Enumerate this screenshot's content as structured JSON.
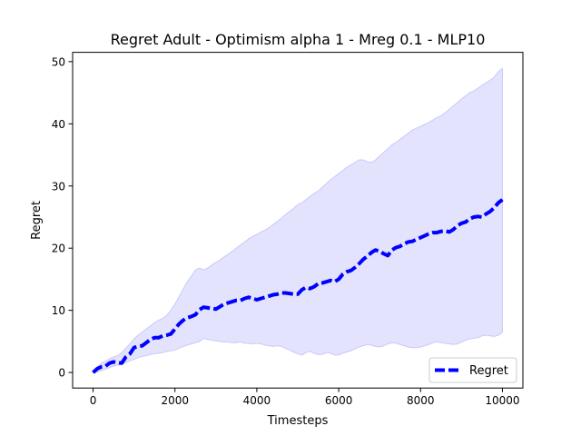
{
  "chart_data": {
    "type": "line",
    "title": "Regret Adult - Optimism alpha 1 - Mreg 0.1 - MLP10",
    "xlabel": "Timesteps",
    "ylabel": "Regret",
    "xlim": [
      -500,
      10500
    ],
    "ylim": [
      -2.5,
      51.5
    ],
    "xticks": [
      0,
      2000,
      4000,
      6000,
      8000,
      10000
    ],
    "yticks": [
      0,
      10,
      20,
      30,
      40,
      50
    ],
    "grid": false,
    "legend_position": "lower right",
    "series": [
      {
        "name": "Regret",
        "style": "dashed",
        "color": "#0000ff",
        "band_color": "#e3e3fd",
        "x": [
          0,
          100,
          200,
          300,
          400,
          500,
          600,
          700,
          800,
          900,
          1000,
          1100,
          1200,
          1300,
          1400,
          1500,
          1600,
          1700,
          1800,
          1900,
          2000,
          2100,
          2200,
          2300,
          2400,
          2500,
          2600,
          2700,
          2800,
          2900,
          3000,
          3100,
          3200,
          3300,
          3400,
          3500,
          3600,
          3700,
          3800,
          3900,
          4000,
          4100,
          4200,
          4300,
          4400,
          4500,
          4600,
          4700,
          4800,
          4900,
          5000,
          5100,
          5200,
          5300,
          5400,
          5500,
          5600,
          5700,
          5800,
          5900,
          6000,
          6100,
          6200,
          6300,
          6400,
          6500,
          6600,
          6700,
          6800,
          6900,
          7000,
          7100,
          7200,
          7300,
          7400,
          7500,
          7600,
          7700,
          7800,
          7900,
          8000,
          8100,
          8200,
          8300,
          8400,
          8500,
          8600,
          8700,
          8800,
          8900,
          9000,
          9100,
          9200,
          9300,
          9400,
          9500,
          9600,
          9700,
          9800,
          9900,
          10000
        ],
        "y": [
          0,
          0.6,
          0.9,
          1.0,
          1.5,
          1.7,
          1.6,
          1.5,
          2.5,
          3.0,
          4.0,
          4.2,
          4.3,
          4.8,
          5.3,
          5.6,
          5.6,
          5.9,
          6.0,
          6.2,
          7.0,
          7.8,
          8.4,
          8.8,
          9.0,
          9.3,
          10.1,
          10.5,
          10.4,
          10.3,
          10.2,
          10.6,
          11.0,
          11.2,
          11.4,
          11.6,
          11.6,
          11.9,
          12.1,
          11.9,
          11.7,
          11.9,
          12.1,
          12.3,
          12.5,
          12.6,
          12.8,
          12.8,
          12.7,
          12.6,
          12.6,
          13.3,
          13.7,
          13.5,
          13.8,
          14.3,
          14.4,
          14.6,
          14.8,
          14.6,
          15.0,
          15.8,
          16.2,
          16.4,
          16.9,
          17.5,
          18.2,
          18.7,
          19.3,
          19.7,
          19.5,
          19.1,
          18.8,
          19.7,
          20.1,
          20.3,
          20.7,
          21.0,
          21.1,
          21.4,
          21.7,
          22.0,
          22.3,
          22.5,
          22.5,
          22.7,
          22.8,
          22.6,
          23.0,
          23.6,
          24.0,
          24.2,
          24.7,
          25.0,
          25.1,
          25.0,
          25.5,
          25.9,
          26.5,
          27.3,
          27.8
        ],
        "lower": [
          0,
          0.1,
          0.3,
          0.5,
          0.8,
          1.0,
          1.2,
          1.3,
          1.6,
          1.9,
          2.1,
          2.4,
          2.6,
          2.7,
          2.9,
          3.0,
          3.1,
          3.2,
          3.4,
          3.5,
          3.6,
          3.9,
          4.2,
          4.4,
          4.6,
          4.8,
          5.0,
          5.5,
          5.3,
          5.2,
          5.1,
          5.0,
          4.9,
          4.9,
          4.8,
          4.8,
          4.9,
          4.7,
          4.7,
          4.6,
          4.7,
          4.6,
          4.4,
          4.3,
          4.2,
          4.3,
          4.2,
          3.9,
          3.6,
          3.3,
          3.0,
          2.8,
          3.2,
          3.4,
          3.1,
          2.9,
          2.9,
          3.2,
          3.1,
          2.8,
          2.8,
          3.1,
          3.3,
          3.5,
          3.8,
          4.1,
          4.3,
          4.5,
          4.4,
          4.2,
          4.1,
          4.3,
          4.6,
          4.8,
          4.7,
          4.5,
          4.3,
          4.1,
          4.0,
          4.0,
          4.1,
          4.3,
          4.5,
          4.8,
          4.9,
          4.8,
          4.7,
          4.6,
          4.5,
          4.6,
          4.9,
          5.2,
          5.4,
          5.5,
          5.6,
          5.9,
          6.0,
          5.9,
          5.8,
          6.0,
          6.5
        ],
        "upper": [
          0,
          0.9,
          1.5,
          1.8,
          2.2,
          2.5,
          2.7,
          3.2,
          3.9,
          4.6,
          5.4,
          6.0,
          6.5,
          7.0,
          7.5,
          8.0,
          8.4,
          8.7,
          9.2,
          10.0,
          11.0,
          12.2,
          13.4,
          14.6,
          15.5,
          16.5,
          16.8,
          16.5,
          16.8,
          17.3,
          17.7,
          18.1,
          18.6,
          19.0,
          19.5,
          20.0,
          20.5,
          21.0,
          21.5,
          21.9,
          22.2,
          22.6,
          22.9,
          23.3,
          23.8,
          24.3,
          24.8,
          25.4,
          25.9,
          26.4,
          27.0,
          27.3,
          27.8,
          28.3,
          28.8,
          29.2,
          29.8,
          30.4,
          31.0,
          31.5,
          32.0,
          32.5,
          33.0,
          33.4,
          33.8,
          34.2,
          34.2,
          33.9,
          33.8,
          34.2,
          34.8,
          35.4,
          36.0,
          36.6,
          37.0,
          37.5,
          38.0,
          38.5,
          39.0,
          39.3,
          39.6,
          39.9,
          40.2,
          40.6,
          41.0,
          41.3,
          41.8,
          42.3,
          42.9,
          43.4,
          44.0,
          44.5,
          45.0,
          45.3,
          45.7,
          46.2,
          46.6,
          47.0,
          47.5,
          48.4,
          48.9
        ]
      }
    ]
  }
}
